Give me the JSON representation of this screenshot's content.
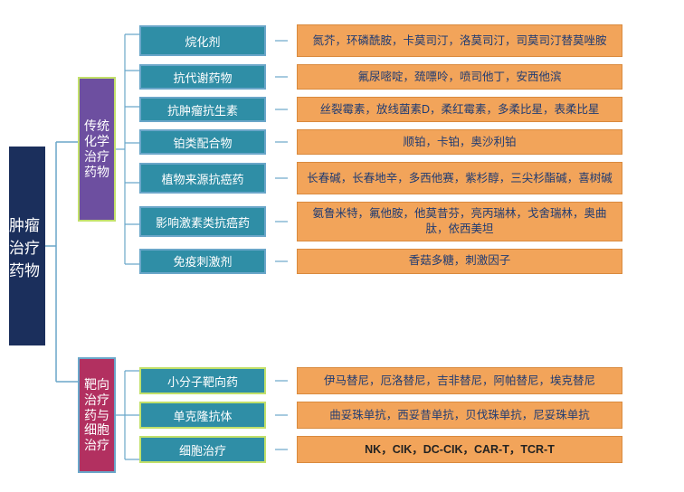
{
  "type": "tree",
  "background_color": "#ffffff",
  "connector_color": "#6aa6c9",
  "root": {
    "label": "肿瘤治疗药物",
    "bg": "#1b2f5c",
    "border": "#6aa6c9",
    "text_color": "#ffffff",
    "fontsize": 17
  },
  "groups": [
    {
      "label": "传统化学治疗药物",
      "bg": "#6d4fa0",
      "border": "#c2e06a",
      "text_color": "#ffffff",
      "fontsize": 14,
      "height": 160,
      "items": [
        {
          "cat": "烷化剂",
          "cat_bg": "#2f8ea6",
          "cat_border": "#6aa6c9",
          "cat_w": 140,
          "cat_h": 34,
          "leaf": "氮芥，环磷酰胺，卡莫司汀，洛莫司汀，司莫司汀替莫唑胺",
          "leaf_bg": "#f2a45a",
          "leaf_border": "#d98a3e",
          "leaf_text": "#1f3b73",
          "leaf_w": 360,
          "leaf_h": 36
        },
        {
          "cat": "抗代谢药物",
          "cat_bg": "#2f8ea6",
          "cat_border": "#6aa6c9",
          "cat_w": 140,
          "cat_h": 28,
          "leaf": "氟尿嘧啶，巯嘌呤，喷司他丁，安西他滨",
          "leaf_bg": "#f2a45a",
          "leaf_border": "#d98a3e",
          "leaf_text": "#1f3b73",
          "leaf_w": 360,
          "leaf_h": 28
        },
        {
          "cat": "抗肿瘤抗生素",
          "cat_bg": "#2f8ea6",
          "cat_border": "#6aa6c9",
          "cat_w": 140,
          "cat_h": 28,
          "leaf": "丝裂霉素，放线菌素D，柔红霉素，多柔比星，表柔比星",
          "leaf_bg": "#f2a45a",
          "leaf_border": "#d98a3e",
          "leaf_text": "#1f3b73",
          "leaf_w": 360,
          "leaf_h": 28
        },
        {
          "cat": "铂类配合物",
          "cat_bg": "#2f8ea6",
          "cat_border": "#6aa6c9",
          "cat_w": 140,
          "cat_h": 28,
          "leaf": "顺铂，卡铂，奥沙利铂",
          "leaf_bg": "#f2a45a",
          "leaf_border": "#d98a3e",
          "leaf_text": "#1f3b73",
          "leaf_w": 360,
          "leaf_h": 28
        },
        {
          "cat": "植物来源抗癌药",
          "cat_bg": "#2f8ea6",
          "cat_border": "#6aa6c9",
          "cat_w": 140,
          "cat_h": 34,
          "leaf": "长春碱，长春地辛，多西他赛，紫杉醇，三尖杉酯碱，喜树碱",
          "leaf_bg": "#f2a45a",
          "leaf_border": "#d98a3e",
          "leaf_text": "#1f3b73",
          "leaf_w": 360,
          "leaf_h": 36
        },
        {
          "cat": "影响激素类抗癌药",
          "cat_bg": "#2f8ea6",
          "cat_border": "#6aa6c9",
          "cat_w": 140,
          "cat_h": 34,
          "leaf": "氨鲁米特，氟他胺，他莫昔芬，亮丙瑞林，戈舍瑞林，奥曲肽，依西美坦",
          "leaf_bg": "#f2a45a",
          "leaf_border": "#d98a3e",
          "leaf_text": "#1f3b73",
          "leaf_w": 360,
          "leaf_h": 36
        },
        {
          "cat": "免疫刺激剂",
          "cat_bg": "#2f8ea6",
          "cat_border": "#6aa6c9",
          "cat_w": 140,
          "cat_h": 28,
          "leaf": "香菇多糖，刺激因子",
          "leaf_bg": "#f2a45a",
          "leaf_border": "#d98a3e",
          "leaf_text": "#1f3b73",
          "leaf_w": 360,
          "leaf_h": 28
        }
      ]
    },
    {
      "label": "靶向治疗药与细胞治疗",
      "bg": "#b23060",
      "border": "#6aa6c9",
      "text_color": "#ffffff",
      "fontsize": 14,
      "height": 128,
      "items": [
        {
          "cat": "小分子靶向药",
          "cat_bg": "#2f8ea6",
          "cat_border": "#c2e06a",
          "cat_w": 140,
          "cat_h": 30,
          "leaf": "伊马替尼，厄洛替尼，吉非替尼，阿帕替尼，埃克替尼",
          "leaf_bg": "#f2a45a",
          "leaf_border": "#d98a3e",
          "leaf_text": "#1f3b73",
          "leaf_w": 360,
          "leaf_h": 30
        },
        {
          "cat": "单克隆抗体",
          "cat_bg": "#2f8ea6",
          "cat_border": "#c2e06a",
          "cat_w": 140,
          "cat_h": 30,
          "leaf": "曲妥珠单抗，西妥昔单抗，贝伐珠单抗，尼妥珠单抗",
          "leaf_bg": "#f2a45a",
          "leaf_border": "#d98a3e",
          "leaf_text": "#1f3b73",
          "leaf_w": 360,
          "leaf_h": 30
        },
        {
          "cat": "细胞治疗",
          "cat_bg": "#2f8ea6",
          "cat_border": "#c2e06a",
          "cat_w": 140,
          "cat_h": 30,
          "leaf": "NK，CIK，DC-CIK，CAR-T，TCR-T",
          "leaf_bg": "#f2a45a",
          "leaf_border": "#d98a3e",
          "leaf_text": "#222222",
          "leaf_w": 360,
          "leaf_h": 30,
          "leaf_bold": true
        }
      ]
    }
  ]
}
